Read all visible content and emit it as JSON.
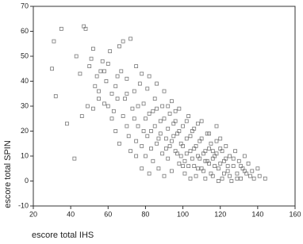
{
  "chart_data": {
    "type": "scatter",
    "x_label": "escore total IHS",
    "y_label": "escore total SPIN",
    "xlim": [
      20,
      160
    ],
    "xticks": [
      20,
      40,
      60,
      80,
      100,
      120,
      140,
      160
    ],
    "ylim": [
      -10,
      70
    ],
    "yticks": [
      -10,
      0,
      10,
      20,
      30,
      40,
      50,
      60,
      70
    ],
    "color": "#777777",
    "x": [
      30,
      31,
      32,
      35,
      38,
      42,
      43,
      45,
      46,
      47,
      48,
      49,
      50,
      51,
      52,
      53,
      54,
      55,
      56,
      57,
      58,
      59,
      60,
      61,
      62,
      63,
      64,
      66,
      67,
      68,
      69,
      70,
      72,
      73,
      74,
      75,
      76,
      77,
      78,
      79,
      80,
      81,
      82,
      83,
      84,
      85,
      86,
      87,
      88,
      89,
      90,
      91,
      92,
      93,
      94,
      95,
      96,
      97,
      98,
      99,
      100,
      101,
      102,
      103,
      104,
      105,
      106,
      107,
      108,
      109,
      110,
      111,
      112,
      113,
      114,
      115,
      116,
      117,
      118,
      119,
      120,
      121,
      122,
      123,
      124,
      125,
      126,
      127,
      128,
      129,
      130,
      131,
      132,
      133,
      134,
      135,
      137,
      138,
      140,
      141,
      144,
      60,
      62,
      64,
      65,
      66,
      68,
      70,
      71,
      72,
      74,
      75,
      76,
      78,
      79,
      80,
      81,
      82,
      83,
      84,
      85,
      86,
      87,
      88,
      89,
      90,
      91,
      92,
      93,
      94,
      95,
      96,
      97,
      98,
      99,
      100,
      101,
      102,
      103,
      104,
      105,
      106,
      107,
      108,
      109,
      110,
      111,
      112,
      113,
      114,
      115,
      116,
      117,
      118,
      119,
      120,
      121,
      122,
      123,
      124,
      125,
      127,
      129,
      131,
      133,
      136,
      75,
      78,
      82,
      86,
      90,
      94,
      98,
      102,
      106,
      110,
      114,
      118,
      92,
      96,
      100,
      104,
      108,
      112,
      116,
      120,
      70,
      65,
      58,
      55,
      52
    ],
    "values": [
      45,
      56,
      34,
      61,
      23,
      9,
      50,
      43,
      26,
      62,
      61,
      30,
      46,
      49,
      53,
      38,
      42,
      36,
      44,
      48,
      31,
      40,
      47,
      52,
      35,
      28,
      38,
      54,
      44,
      56,
      33,
      41,
      57,
      29,
      36,
      46,
      22,
      39,
      43,
      31,
      25,
      37,
      42,
      20,
      28,
      33,
      39,
      17,
      24,
      30,
      36,
      13,
      21,
      27,
      32,
      18,
      24,
      11,
      29,
      15,
      22,
      8,
      17,
      26,
      12,
      20,
      6,
      14,
      23,
      9,
      17,
      4,
      12,
      19,
      7,
      15,
      2,
      10,
      16,
      5,
      13,
      1,
      8,
      14,
      4,
      10,
      0,
      6,
      12,
      3,
      8,
      1,
      5,
      10,
      3,
      7,
      4,
      1,
      5,
      2,
      1,
      30,
      25,
      20,
      33,
      15,
      26,
      22,
      18,
      12,
      25,
      16,
      30,
      14,
      20,
      10,
      18,
      27,
      13,
      8,
      22,
      15,
      5,
      19,
      11,
      25,
      17,
      9,
      14,
      4,
      23,
      12,
      19,
      7,
      10,
      14,
      3,
      11,
      6,
      18,
      9,
      13,
      2,
      10,
      16,
      5,
      11,
      1,
      8,
      13,
      3,
      9,
      6,
      11,
      0,
      7,
      12,
      3,
      9,
      6,
      2,
      9,
      1,
      6,
      4,
      2,
      10,
      5,
      3,
      29,
      2,
      16,
      20,
      24,
      21,
      24,
      19,
      22,
      30,
      28,
      6,
      1,
      5,
      8,
      12,
      17,
      35,
      42,
      44,
      33,
      29
    ]
  }
}
